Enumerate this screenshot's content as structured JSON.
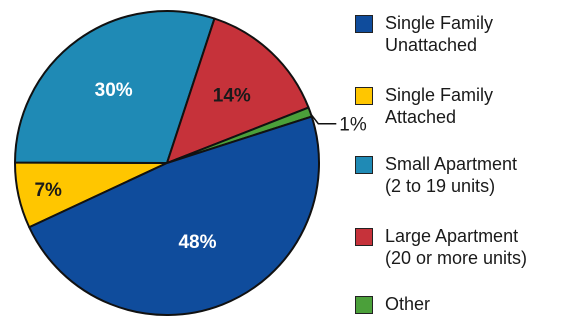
{
  "chart_data": {
    "type": "pie",
    "slices": [
      {
        "label_lines": [
          "Single Family",
          "Unattached"
        ],
        "value": 48,
        "label": "48%",
        "color": "#0f4c9c",
        "text_color": "#ffffff"
      },
      {
        "label_lines": [
          "Single Family",
          "Attached"
        ],
        "value": 7,
        "label": "7%",
        "color": "#ffc600",
        "text_color": "#1a1a1a"
      },
      {
        "label_lines": [
          "Small Apartment",
          "(2 to 19 units)"
        ],
        "value": 30,
        "label": "30%",
        "color": "#1f8ab5",
        "text_color": "#ffffff"
      },
      {
        "label_lines": [
          "Large Apartment",
          "(20 or more units)"
        ],
        "value": 14,
        "label": "14%",
        "color": "#c6323a",
        "text_color": "#1a1a1a"
      },
      {
        "label_lines": [
          "Other"
        ],
        "value": 1,
        "label": "1%",
        "color": "#4ba03a",
        "text_color": "#1a1a1a"
      }
    ],
    "legend_position": "right"
  }
}
